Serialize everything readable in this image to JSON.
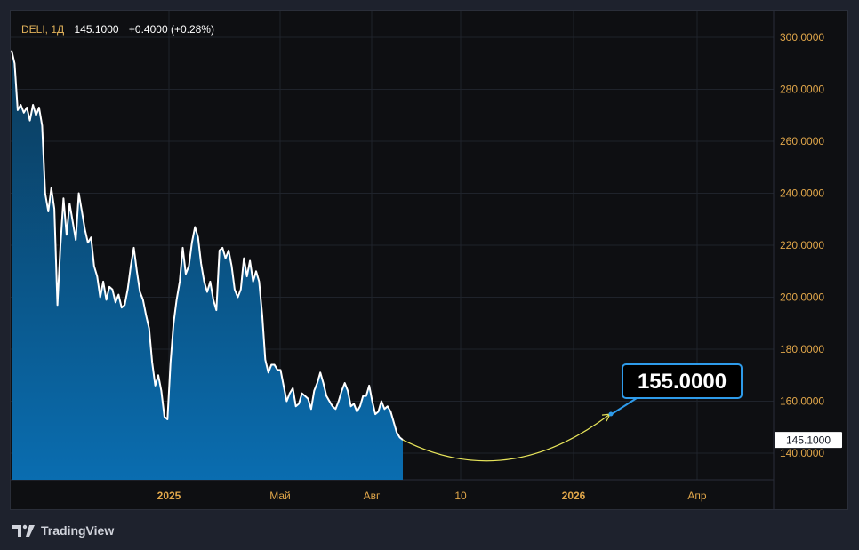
{
  "legend": {
    "symbol": "DELI, 1Д",
    "last": "145.1000",
    "change": "+0.4000 (+0.28%)"
  },
  "branding": {
    "name": "TradingView"
  },
  "colors": {
    "line": "#ffffff",
    "area_top": "#0b3a5a",
    "area_bottom": "#0a6db0",
    "tick_text": "#e0a64a",
    "forecast": "#e6e35a",
    "callout_border": "#2e9bea",
    "grid": "#1f232b"
  },
  "chart_data": {
    "type": "area",
    "title": "",
    "xlabel": "",
    "ylabel": "",
    "x_ticks": [
      "2025",
      "Май",
      "Авг",
      "10",
      "2026",
      "Апр"
    ],
    "y_ticks": [
      "300.0000",
      "280.0000",
      "260.0000",
      "240.0000",
      "220.0000",
      "200.0000",
      "180.0000",
      "160.0000",
      "140.0000"
    ],
    "ylim": [
      130,
      305
    ],
    "grid": true,
    "series": [
      {
        "values": [
          295.0,
          290.0,
          272.0,
          274.0,
          271.0,
          273.0,
          268.0,
          274.0,
          270.0,
          273.0,
          266.0,
          240.0,
          233.0,
          242.0,
          234.0,
          197.0,
          220.0,
          238.0,
          224.0,
          236.0,
          229.0,
          222.0,
          240.0,
          233.0,
          226.0,
          221.0,
          223.0,
          212.0,
          208.0,
          200.0,
          206.0,
          199.0,
          204.0,
          203.0,
          198.0,
          201.0,
          196.0,
          197.0,
          203.0,
          212.0,
          219.0,
          210.0,
          202.0,
          199.0,
          193.0,
          188.0,
          175.0,
          166.0,
          170.0,
          164.0,
          154.0,
          153.0,
          175.0,
          190.0,
          199.0,
          206.0,
          219.0,
          209.0,
          212.0,
          221.0,
          227.0,
          223.0,
          213.0,
          206.0,
          202.0,
          206.0,
          199.0,
          195.0,
          218.0,
          219.0,
          215.0,
          218.0,
          212.0,
          203.0,
          200.0,
          203.0,
          215.0,
          208.0,
          214.0,
          206.0,
          210.0,
          206.0,
          193.0,
          176.0,
          171.0,
          174.0,
          174.0,
          172.0,
          172.0,
          166.0,
          160.0,
          163.0,
          165.0,
          158.0,
          159.0,
          163.0,
          162.0,
          161.0,
          157.0,
          164.0,
          167.0,
          171.0,
          167.0,
          162.0,
          160.0,
          158.0,
          157.0,
          160.0,
          164.0,
          167.0,
          164.0,
          158.0,
          159.0,
          156.0,
          158.0,
          162.0,
          162.0,
          166.0,
          160.0,
          155.0,
          156.0,
          160.0,
          157.0,
          158.0,
          156.0,
          152.0,
          148.0,
          146.0,
          145.1
        ],
        "color": "#ffffff"
      }
    ],
    "current_price_label": "145.1000",
    "forecast": {
      "start": 145.1,
      "low": 137.5,
      "target": 155.0,
      "target_label": "155.0000"
    }
  }
}
